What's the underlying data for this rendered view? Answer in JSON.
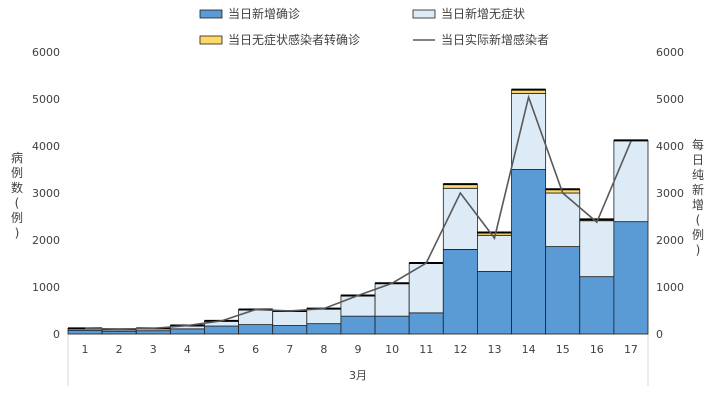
{
  "chart_data": {
    "type": "bar",
    "stacked": true,
    "categories": [
      "1",
      "2",
      "3",
      "4",
      "5",
      "6",
      "7",
      "8",
      "9",
      "10",
      "11",
      "12",
      "13",
      "14",
      "15",
      "16",
      "17"
    ],
    "x_group_label": "3月",
    "series": [
      {
        "name": "当日新增确诊",
        "color": "#5B9BD5",
        "values": [
          80,
          60,
          70,
          110,
          170,
          200,
          180,
          220,
          380,
          380,
          450,
          1800,
          1330,
          3500,
          1860,
          1220,
          2390
        ]
      },
      {
        "name": "当日新增无症状",
        "color": "#DDEBF7",
        "values": [
          40,
          40,
          50,
          70,
          110,
          320,
          310,
          320,
          440,
          700,
          1060,
          1300,
          770,
          1620,
          1140,
          1190,
          1730
        ]
      },
      {
        "name": "当日无症状感染者转确诊",
        "color": "#FFD966",
        "values": [
          0,
          0,
          0,
          0,
          0,
          0,
          0,
          0,
          0,
          0,
          0,
          90,
          60,
          80,
          80,
          30,
          0
        ]
      }
    ],
    "line_series": {
      "name": "当日实际新增感染者",
      "color": "#595959",
      "values": [
        120,
        100,
        120,
        180,
        280,
        520,
        490,
        540,
        820,
        1080,
        1510,
        3000,
        2040,
        5040,
        3000,
        2380,
        4100
      ]
    },
    "y_left": {
      "label": "病例数（例）",
      "ticks": [
        "0",
        "1000",
        "2000",
        "3000",
        "4000",
        "5000",
        "6000"
      ],
      "ylim": [
        0,
        6000
      ]
    },
    "y_right": {
      "label": "每日纯新增（例）",
      "ticks": [
        "0",
        "1000",
        "2000",
        "3000",
        "4000",
        "5000",
        "6000"
      ],
      "ylim": [
        0,
        6000
      ]
    },
    "legend_position": "top",
    "grid": false
  }
}
